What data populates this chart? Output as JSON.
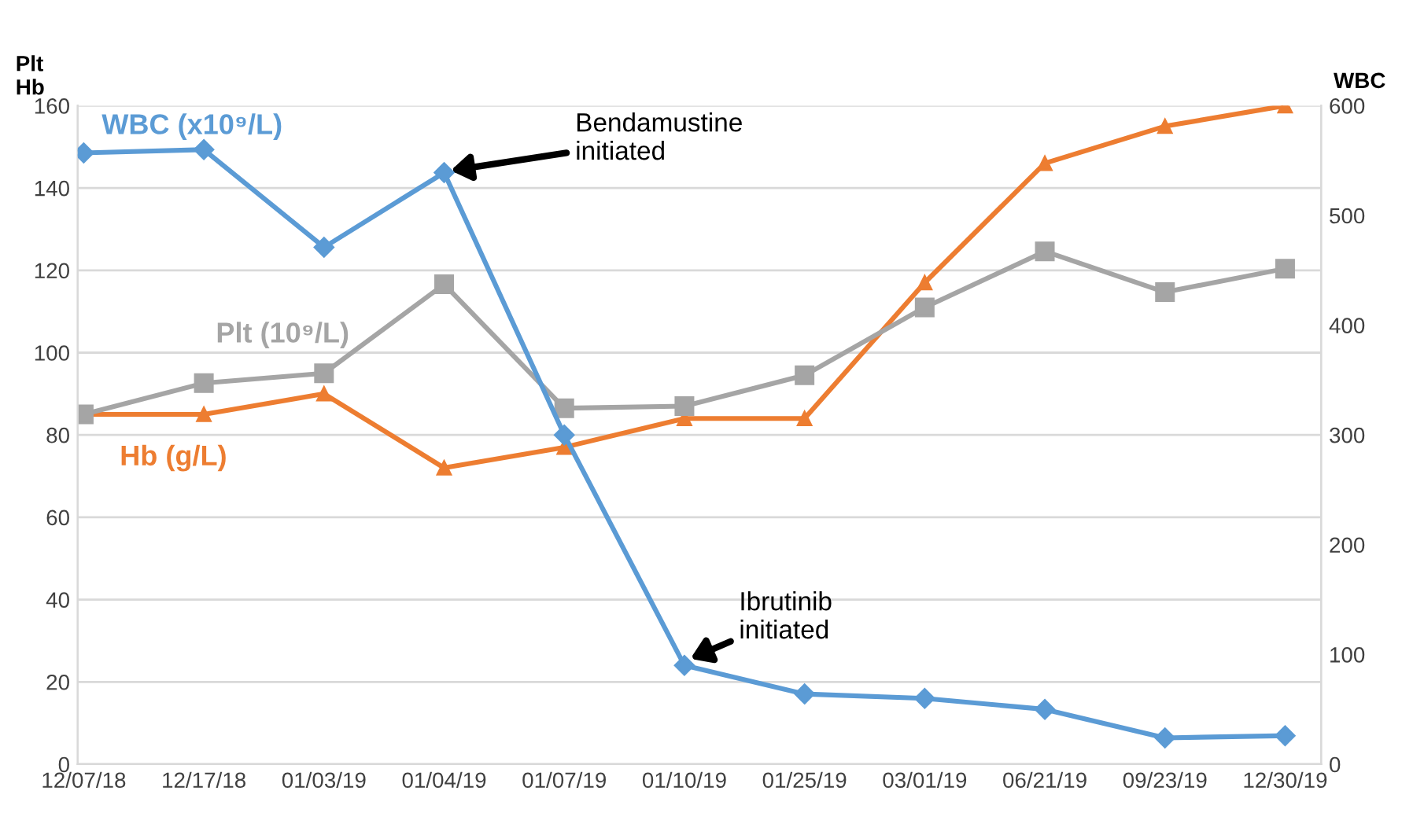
{
  "chart_data": {
    "type": "line",
    "categories": [
      "12/07/18",
      "12/17/18",
      "01/03/19",
      "01/04/19",
      "01/07/19",
      "01/10/19",
      "01/25/19",
      "03/01/19",
      "06/21/19",
      "09/23/19",
      "12/30/19"
    ],
    "series": [
      {
        "name": "WBC (x10⁹/L)",
        "color": "#5b9bd5",
        "axis": "y2",
        "marker": "diamond",
        "values": [
          557,
          560,
          471,
          539,
          300,
          90,
          64,
          60,
          50,
          24,
          26
        ]
      },
      {
        "name": "Plt (10⁹/L)",
        "color": "#a5a5a5",
        "marker": "square",
        "values": [
          85,
          92.6,
          95,
          116.6,
          86.5,
          87,
          94.5,
          111,
          124.6,
          114.7,
          120.4
        ]
      },
      {
        "name": "Hb (g/L)",
        "color": "#ed7d31",
        "marker": "triangle",
        "values": [
          85,
          85,
          90,
          72,
          77,
          84,
          84,
          117,
          146,
          155,
          160
        ]
      }
    ],
    "ylabel": "Plt\nHb",
    "y2label": "WBC",
    "ylim": [
      0,
      160
    ],
    "yticks": [
      0,
      20,
      40,
      60,
      80,
      100,
      120,
      140,
      160
    ],
    "y2lim": [
      0,
      600
    ],
    "y2ticks": [
      0,
      100,
      200,
      300,
      400,
      500,
      600
    ],
    "grid": "y",
    "legend": false,
    "line_style": "solid",
    "annotations": [
      {
        "text": "Bendamustine\ninitiated",
        "x": "01/04/19",
        "y": 144
      },
      {
        "text": "Ibrutinib\ninitiated",
        "x": "01/10/19",
        "y": 25
      }
    ]
  }
}
